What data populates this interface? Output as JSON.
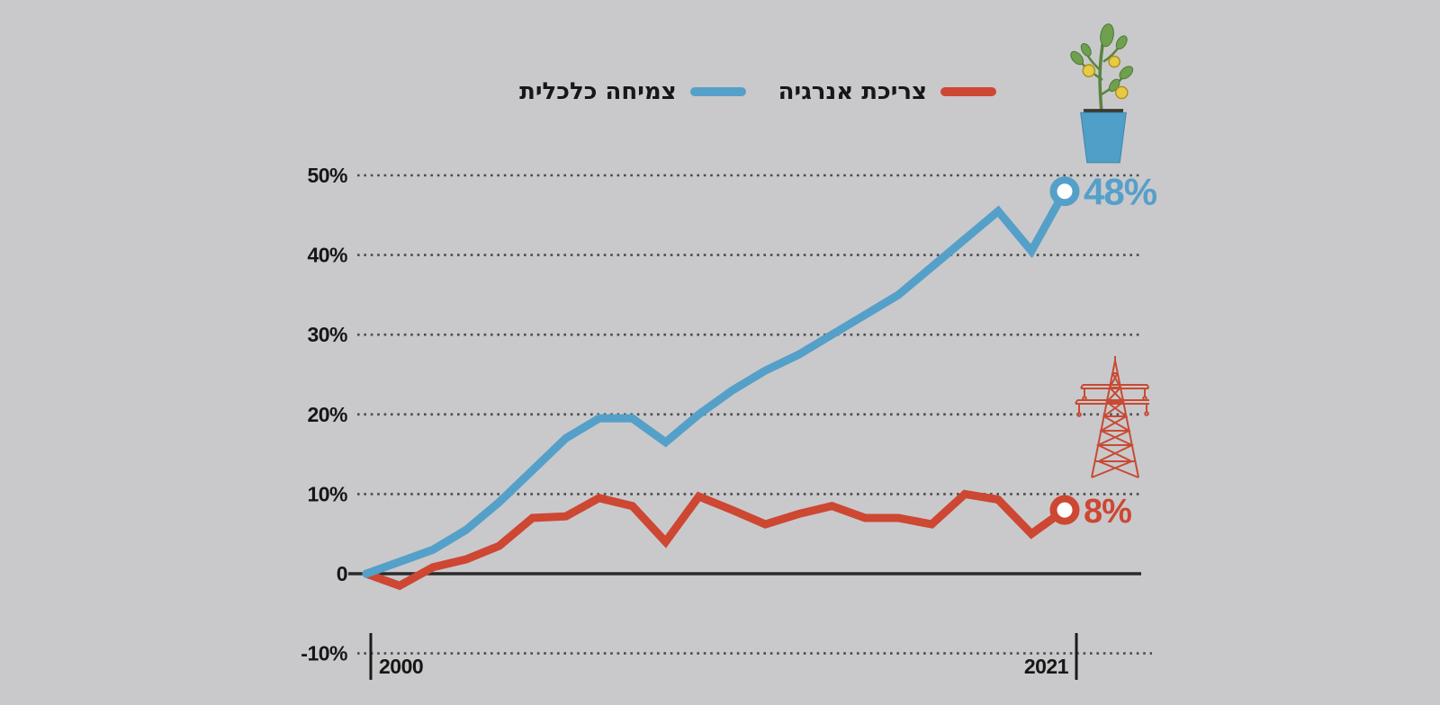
{
  "background": "#c9c9cb",
  "text_color": "#161616",
  "legend": {
    "items": [
      {
        "key": "energy",
        "label": "צריכת אנרגיה",
        "color": "#cd4733"
      },
      {
        "key": "growth",
        "label": "צמיחה כלכלית",
        "color": "#55a0c9"
      }
    ]
  },
  "icons": {
    "growth": "money-plant-icon",
    "energy": "electricity-pylon-icon"
  },
  "chart_data": {
    "type": "line",
    "title": "",
    "xlabel": "",
    "ylabel": "",
    "x": [
      2000,
      2001,
      2002,
      2003,
      2004,
      2005,
      2006,
      2007,
      2008,
      2009,
      2010,
      2011,
      2012,
      2013,
      2014,
      2015,
      2016,
      2017,
      2018,
      2019,
      2020,
      2021
    ],
    "series": [
      {
        "name": "צמיחה כלכלית",
        "color": "#55a0c9",
        "end_label": "48%",
        "values": [
          0,
          1.5,
          3,
          5.5,
          9,
          13,
          17,
          19.5,
          19.5,
          16.5,
          20,
          23,
          25.5,
          27.5,
          30,
          32.5,
          35,
          38.5,
          42,
          45.5,
          40.5,
          48
        ]
      },
      {
        "name": "צריכת אנרגיה",
        "color": "#cd4733",
        "end_label": "8%",
        "values": [
          0,
          -1.5,
          0.8,
          1.8,
          3.5,
          7,
          7.2,
          9.5,
          8.5,
          4,
          9.7,
          8,
          6.2,
          7.5,
          8.5,
          7,
          7,
          6.2,
          10,
          9.3,
          5,
          8
        ]
      }
    ],
    "ylim": [
      -10,
      50
    ],
    "yticks": [
      {
        "value": 50,
        "label": "50%"
      },
      {
        "value": 40,
        "label": "40%"
      },
      {
        "value": 30,
        "label": "30%"
      },
      {
        "value": 20,
        "label": "20%"
      },
      {
        "value": 10,
        "label": "10%"
      },
      {
        "value": 0,
        "label": "0"
      },
      {
        "value": -10,
        "label": "-10%"
      }
    ],
    "xticks": [
      {
        "value": 2000,
        "label": "2000"
      },
      {
        "value": 2021,
        "label": "2021"
      }
    ],
    "grid": "horizontal-dotted",
    "zero_line": true,
    "legend_position": "top-center"
  }
}
